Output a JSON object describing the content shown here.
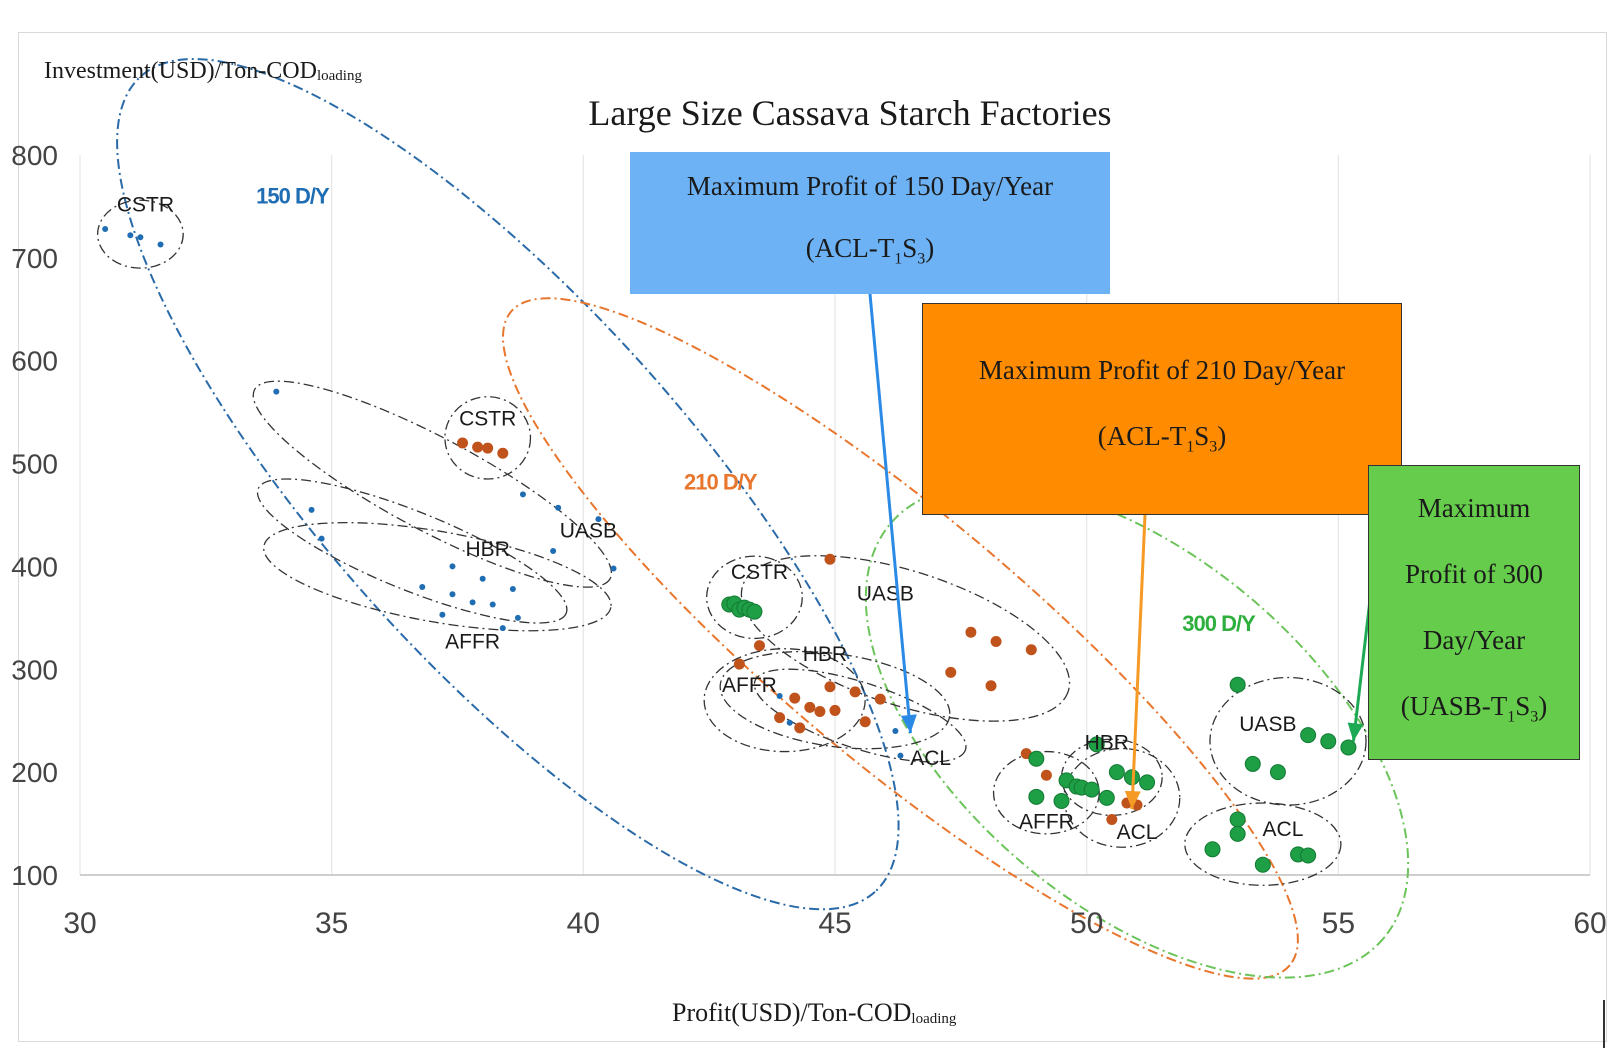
{
  "chart_data": {
    "type": "scatter",
    "title": "Large Size Cassava Starch Factories",
    "ylabel": "Investment(USD)/Ton-COD",
    "ylabel_sub": "loading",
    "xlabel": "Profit(USD)/Ton-COD",
    "xlabel_sub": "loading",
    "xlim": [
      30,
      60
    ],
    "ylim": [
      100,
      800
    ],
    "x_ticks": [
      "30",
      "35",
      "40",
      "45",
      "50",
      "55",
      "60"
    ],
    "y_ticks": [
      "100",
      "200",
      "300",
      "400",
      "500",
      "600",
      "700",
      "800"
    ],
    "grid": "vertical",
    "series": [
      {
        "name": "150 D/Y",
        "color": "#1f6db3",
        "marker": "small",
        "points": [
          [
            30.5,
            728
          ],
          [
            31.0,
            722
          ],
          [
            31.2,
            720
          ],
          [
            31.6,
            713
          ],
          [
            33.9,
            570
          ],
          [
            34.6,
            455
          ],
          [
            34.8,
            427
          ],
          [
            36.8,
            380
          ],
          [
            37.2,
            353
          ],
          [
            37.4,
            373
          ],
          [
            37.8,
            365
          ],
          [
            38.0,
            388
          ],
          [
            38.2,
            363
          ],
          [
            38.4,
            340
          ],
          [
            38.6,
            378
          ],
          [
            38.7,
            350
          ],
          [
            38.8,
            470
          ],
          [
            39.4,
            415
          ],
          [
            39.5,
            457
          ],
          [
            40.3,
            446
          ],
          [
            40.6,
            398
          ],
          [
            37.4,
            400
          ],
          [
            43.9,
            274
          ],
          [
            44.1,
            248
          ],
          [
            46.2,
            240
          ],
          [
            46.3,
            216
          ]
        ]
      },
      {
        "name": "210 D/Y",
        "color": "#c0531b",
        "marker": "medium",
        "points": [
          [
            37.6,
            520
          ],
          [
            37.9,
            516
          ],
          [
            38.1,
            515
          ],
          [
            38.4,
            510
          ],
          [
            43.1,
            305
          ],
          [
            43.5,
            323
          ],
          [
            43.9,
            253
          ],
          [
            44.2,
            272
          ],
          [
            44.3,
            243
          ],
          [
            44.5,
            263
          ],
          [
            44.7,
            259
          ],
          [
            44.9,
            283
          ],
          [
            45.0,
            260
          ],
          [
            45.4,
            278
          ],
          [
            45.6,
            249
          ],
          [
            45.9,
            271
          ],
          [
            44.9,
            407
          ],
          [
            47.3,
            297
          ],
          [
            47.7,
            336
          ],
          [
            48.1,
            284
          ],
          [
            48.2,
            327
          ],
          [
            48.9,
            319
          ],
          [
            48.8,
            218
          ],
          [
            49.2,
            197
          ],
          [
            50.5,
            154
          ],
          [
            50.8,
            170
          ],
          [
            51.0,
            168
          ]
        ]
      },
      {
        "name": "300 D/Y",
        "color": "#1e9e45",
        "marker": "large",
        "points": [
          [
            42.9,
            363
          ],
          [
            43.0,
            364
          ],
          [
            43.1,
            358
          ],
          [
            43.2,
            360
          ],
          [
            43.3,
            358
          ],
          [
            43.4,
            356
          ],
          [
            49.0,
            176
          ],
          [
            49.0,
            213
          ],
          [
            49.5,
            172
          ],
          [
            49.6,
            192
          ],
          [
            49.8,
            186
          ],
          [
            49.9,
            185
          ],
          [
            50.1,
            183
          ],
          [
            50.4,
            175
          ],
          [
            50.9,
            195
          ],
          [
            51.2,
            190
          ],
          [
            50.2,
            227
          ],
          [
            50.6,
            200
          ],
          [
            52.5,
            125
          ],
          [
            53.0,
            154
          ],
          [
            53.0,
            140
          ],
          [
            53.5,
            110
          ],
          [
            54.2,
            120
          ],
          [
            54.4,
            119
          ],
          [
            53.0,
            285
          ],
          [
            53.3,
            208
          ],
          [
            53.8,
            200
          ],
          [
            54.4,
            236
          ],
          [
            54.8,
            230
          ],
          [
            55.2,
            224
          ]
        ]
      }
    ],
    "group_labels": [
      {
        "text": "150 D/Y",
        "x": 33.5,
        "y": 753,
        "color": "#1f6db3"
      },
      {
        "text": "210 D/Y",
        "x": 42.0,
        "y": 475,
        "color": "#e8762d"
      },
      {
        "text": "300 D/Y",
        "x": 51.9,
        "y": 337,
        "color": "#2eaf3e"
      }
    ],
    "cluster_labels": [
      {
        "text": "CSTR",
        "x": 31.3,
        "y": 745
      },
      {
        "text": "CSTR",
        "x": 38.1,
        "y": 537
      },
      {
        "text": "UASB",
        "x": 40.1,
        "y": 428
      },
      {
        "text": "HBR",
        "x": 38.1,
        "y": 410
      },
      {
        "text": "AFFR",
        "x": 37.8,
        "y": 320
      },
      {
        "text": "CSTR",
        "x": 43.5,
        "y": 388
      },
      {
        "text": "UASB",
        "x": 46.0,
        "y": 367
      },
      {
        "text": "HBR",
        "x": 44.8,
        "y": 308
      },
      {
        "text": "AFFR",
        "x": 43.3,
        "y": 278
      },
      {
        "text": "ACL",
        "x": 46.9,
        "y": 207
      },
      {
        "text": "HBR",
        "x": 50.4,
        "y": 222
      },
      {
        "text": "AFFR",
        "x": 49.2,
        "y": 145
      },
      {
        "text": "ACL",
        "x": 51.0,
        "y": 135
      },
      {
        "text": "UASB",
        "x": 53.6,
        "y": 240
      },
      {
        "text": "ACL",
        "x": 53.9,
        "y": 138
      }
    ],
    "annotations": [
      {
        "id": "callout-150",
        "lines": [
          "Maximum Profit of 150 Day/Year",
          "(ACL-T",
          "1",
          "S",
          "3",
          ")"
        ],
        "color": "#6cb2f5",
        "arrow_color": "#2a8ae6",
        "target": [
          46.5,
          238
        ]
      },
      {
        "id": "callout-210",
        "lines": [
          "Maximum Profit of 210 Day/Year",
          "(ACL-T",
          "1",
          "S",
          "3",
          ")"
        ],
        "color": "#ff8c00",
        "arrow_color": "#f59a25",
        "target": [
          50.9,
          164
        ]
      },
      {
        "id": "callout-300",
        "lines": [
          "Maximum",
          "Profit of 300",
          "Day/Year",
          "(UASB-T",
          "1",
          "S",
          "3",
          ")"
        ],
        "color": "#66cc4c",
        "arrow_color": "#1eaa55",
        "target": [
          55.3,
          230
        ]
      }
    ]
  }
}
